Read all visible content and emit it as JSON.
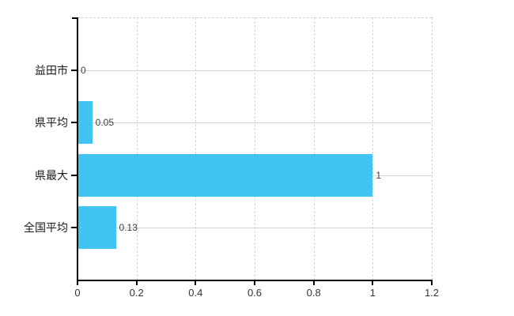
{
  "chart_data": {
    "type": "bar",
    "orientation": "horizontal",
    "title": "",
    "xlabel": "",
    "ylabel": "",
    "categories": [
      "益田市",
      "県平均",
      "県最大",
      "全国平均"
    ],
    "values": [
      0,
      0.05,
      1,
      0.13
    ],
    "value_labels": [
      "0",
      "0.05",
      "1",
      "0.13"
    ],
    "xlim": [
      0,
      1.2
    ],
    "x_ticks": [
      0,
      0.2,
      0.4,
      0.6,
      0.8,
      1,
      1.2
    ],
    "x_tick_labels": [
      "0",
      "0.2",
      "0.4",
      "0.6",
      "0.8",
      "1",
      "1.2"
    ],
    "grid": true,
    "legend": false,
    "gridline_style": {
      "vertical": "dashed",
      "horizontal": "solid"
    },
    "bar_color": "#41c4f1",
    "axis_color": "#000000",
    "grid_color": "#d6d6d6",
    "category_label_color": "#1a1a1a",
    "value_label_color": "#3c3c3c",
    "tick_label_color": "#333333",
    "background_color": "#ffffff"
  }
}
